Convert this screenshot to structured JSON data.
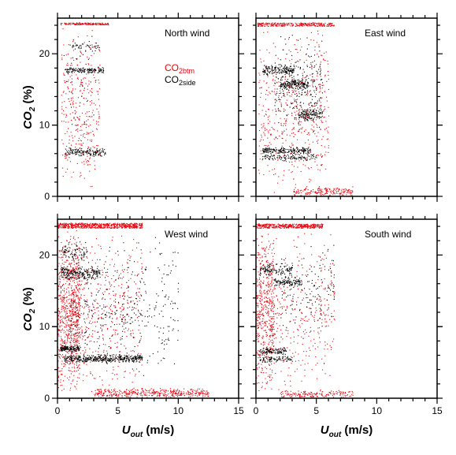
{
  "chart_data": [
    {
      "type": "scatter",
      "panel": "top-left",
      "title": "North  wind",
      "xlim": [
        0,
        15
      ],
      "ylim": [
        0,
        25
      ],
      "xticks": [
        "0",
        "5",
        "10",
        "15"
      ],
      "yticks": [
        "0",
        "10",
        "20"
      ],
      "legend": {
        "placement": "inside-top-right",
        "series": [
          {
            "base": "CO",
            "sub": "2btm",
            "color": "#e8000b"
          },
          {
            "base": "CO",
            "sub": "2side",
            "color": "#000000"
          }
        ]
      },
      "series": [
        {
          "name": "CO2btm",
          "color": "#e8000b",
          "clusters": [
            {
              "x": [
                0.2,
                4.2
              ],
              "y": [
                24.1,
                24.4
              ],
              "n": 160,
              "style": "band"
            },
            {
              "x": [
                0.3,
                3.5
              ],
              "y": [
                0,
                24
              ],
              "n": 330
            }
          ]
        },
        {
          "name": "CO2side",
          "color": "#000000",
          "clusters": [
            {
              "x": [
                0.6,
                3.8
              ],
              "y": [
                17.3,
                18.2
              ],
              "n": 140
            },
            {
              "x": [
                0.6,
                4.0
              ],
              "y": [
                5.6,
                6.9
              ],
              "n": 160
            },
            {
              "x": [
                1.2,
                3.5
              ],
              "y": [
                20.3,
                21.8
              ],
              "n": 45
            },
            {
              "x": [
                0.5,
                3.0
              ],
              "y": [
                8,
                23.5
              ],
              "n": 40
            }
          ]
        }
      ]
    },
    {
      "type": "scatter",
      "panel": "top-right",
      "title": "East  wind",
      "xlim": [
        0,
        15
      ],
      "ylim": [
        0,
        25
      ],
      "xticks": [
        "0",
        "5",
        "10",
        "15"
      ],
      "yticks": [
        "0",
        "10",
        "20"
      ],
      "series": [
        {
          "name": "CO2btm",
          "color": "#e8000b",
          "clusters": [
            {
              "x": [
                0.1,
                6.5
              ],
              "y": [
                23.9,
                24.4
              ],
              "n": 300,
              "style": "band"
            },
            {
              "x": [
                0.2,
                6.0
              ],
              "y": [
                0,
                24
              ],
              "n": 550
            },
            {
              "x": [
                3.0,
                8.0
              ],
              "y": [
                0,
                1.5
              ],
              "n": 180
            }
          ]
        },
        {
          "name": "CO2side",
          "color": "#000000",
          "clusters": [
            {
              "x": [
                0.5,
                3.2
              ],
              "y": [
                17,
                18.5
              ],
              "n": 160
            },
            {
              "x": [
                2.0,
                4.3
              ],
              "y": [
                15,
                16.5
              ],
              "n": 170
            },
            {
              "x": [
                3.5,
                5.5
              ],
              "y": [
                10.5,
                12.5
              ],
              "n": 120
            },
            {
              "x": [
                0.5,
                4.5
              ],
              "y": [
                6.0,
                7.0
              ],
              "n": 200
            },
            {
              "x": [
                0.5,
                5.0
              ],
              "y": [
                5.0,
                6.0
              ],
              "n": 120
            },
            {
              "x": [
                1.5,
                5.5
              ],
              "y": [
                8,
                23
              ],
              "n": 240
            }
          ]
        }
      ]
    },
    {
      "type": "scatter",
      "panel": "bottom-left",
      "title": "West  wind",
      "xlim": [
        0,
        15
      ],
      "ylim": [
        0,
        25
      ],
      "xticks": [
        "0",
        "5",
        "10",
        "15"
      ],
      "yticks": [
        "0",
        "10",
        "20"
      ],
      "series": [
        {
          "name": "CO2btm",
          "color": "#e8000b",
          "clusters": [
            {
              "x": [
                0.0,
                7.0
              ],
              "y": [
                23.8,
                24.5
              ],
              "n": 600,
              "style": "band"
            },
            {
              "x": [
                0.0,
                1.8
              ],
              "y": [
                0,
                24
              ],
              "n": 700
            },
            {
              "x": [
                1.0,
                7.0
              ],
              "y": [
                0,
                24
              ],
              "n": 500
            },
            {
              "x": [
                3.0,
                12.5
              ],
              "y": [
                0,
                1.5
              ],
              "n": 400
            }
          ]
        },
        {
          "name": "CO2side",
          "color": "#000000",
          "clusters": [
            {
              "x": [
                0.3,
                3.5
              ],
              "y": [
                16.5,
                18.5
              ],
              "n": 240
            },
            {
              "x": [
                0.3,
                2.5
              ],
              "y": [
                19,
                22
              ],
              "n": 80
            },
            {
              "x": [
                0.2,
                1.8
              ],
              "y": [
                6.5,
                7.5
              ],
              "n": 140
            },
            {
              "x": [
                0.5,
                7.0
              ],
              "y": [
                5.0,
                6.2
              ],
              "n": 420
            },
            {
              "x": [
                1.0,
                10.0
              ],
              "y": [
                3,
                23
              ],
              "n": 360
            }
          ]
        }
      ]
    },
    {
      "type": "scatter",
      "panel": "bottom-right",
      "title": "South  wind",
      "xlim": [
        0,
        15
      ],
      "ylim": [
        0,
        25
      ],
      "xticks": [
        "0",
        "5",
        "10",
        "15"
      ],
      "yticks": [
        "0",
        "10",
        "20"
      ],
      "series": [
        {
          "name": "CO2btm",
          "color": "#e8000b",
          "clusters": [
            {
              "x": [
                0.0,
                5.5
              ],
              "y": [
                23.8,
                24.4
              ],
              "n": 400,
              "style": "band"
            },
            {
              "x": [
                0.0,
                1.5
              ],
              "y": [
                0,
                24
              ],
              "n": 500
            },
            {
              "x": [
                1.0,
                6.5
              ],
              "y": [
                0,
                24
              ],
              "n": 330
            },
            {
              "x": [
                2.0,
                8.0
              ],
              "y": [
                0,
                1.2
              ],
              "n": 160
            }
          ]
        },
        {
          "name": "CO2side",
          "color": "#000000",
          "clusters": [
            {
              "x": [
                0.3,
                3.0
              ],
              "y": [
                17,
                19
              ],
              "n": 130
            },
            {
              "x": [
                1.5,
                3.8
              ],
              "y": [
                15.5,
                17
              ],
              "n": 110
            },
            {
              "x": [
                0.3,
                2.5
              ],
              "y": [
                6.0,
                7.2
              ],
              "n": 110
            },
            {
              "x": [
                0.3,
                3.0
              ],
              "y": [
                5.0,
                6.0
              ],
              "n": 80
            },
            {
              "x": [
                2.0,
                6.5
              ],
              "y": [
                8,
                22
              ],
              "n": 150
            }
          ]
        }
      ]
    }
  ],
  "axes": {
    "ylabel_base": "CO",
    "ylabel_sub": "2",
    "ylabel_unit": " (%)",
    "xlabel_base": "U",
    "xlabel_sub": "out",
    "xlabel_unit": " (m/s)"
  }
}
